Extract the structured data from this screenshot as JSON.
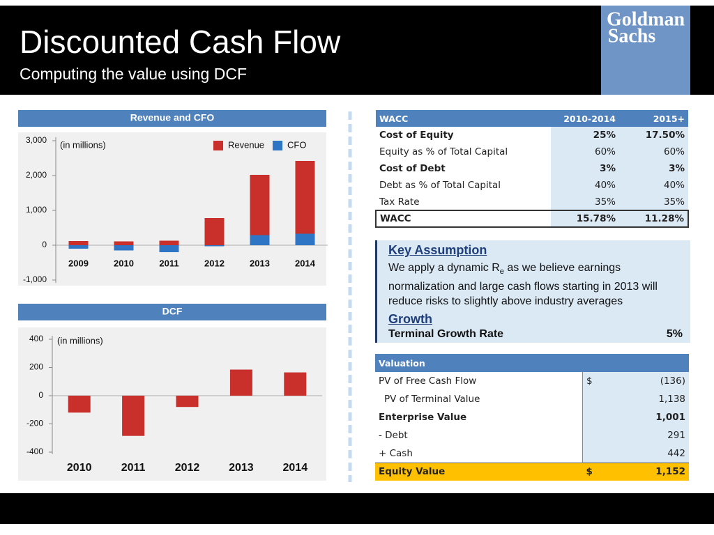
{
  "header": {
    "title": "Discounted Cash Flow",
    "subtitle": "Computing the value using DCF",
    "logo": [
      "Goldman",
      "Sachs"
    ]
  },
  "chart_data": [
    {
      "type": "bar",
      "title": "Revenue and CFO",
      "annotation": "(in millions)",
      "categories": [
        "2009",
        "2010",
        "2011",
        "2012",
        "2013",
        "2014"
      ],
      "series": [
        {
          "name": "Revenue",
          "color": "#c9302c",
          "values": [
            120,
            110,
            130,
            780,
            2020,
            2420
          ]
        },
        {
          "name": "CFO",
          "color": "#2e75c6",
          "values": [
            -100,
            -150,
            -200,
            -30,
            290,
            330
          ]
        }
      ],
      "ylim": [
        -1000,
        3000
      ],
      "yticks": [
        {
          "value": -1000,
          "label": "-1,000"
        },
        0,
        {
          "value": 1000,
          "label": "1,000"
        },
        {
          "value": 2000,
          "label": "2,000"
        },
        {
          "value": 3000,
          "label": "3,000"
        }
      ],
      "legend": "top-right"
    },
    {
      "type": "bar",
      "title": "DCF",
      "annotation": "(in millions)",
      "categories": [
        "2010",
        "2011",
        "2012",
        "2013",
        "2014"
      ],
      "values": [
        -120,
        -285,
        -80,
        185,
        165
      ],
      "color": "#c9302c",
      "ylim": [
        -400,
        400
      ],
      "yticks": [
        -400,
        -200,
        0,
        200,
        400
      ]
    }
  ],
  "wacc": {
    "header": [
      "WACC",
      "2010-2014",
      "2015+"
    ],
    "rows": [
      [
        "Cost of Equity",
        "25%",
        "17.50%"
      ],
      [
        "Equity as % of Total Capital",
        "60%",
        "60%"
      ],
      [
        "Cost of Debt",
        "3%",
        "3%"
      ],
      [
        "Debt as % of Total Capital",
        "40%",
        "40%"
      ],
      [
        "Tax Rate",
        "35%",
        "35%"
      ],
      [
        "WACC",
        "15.78%",
        "11.28%"
      ]
    ]
  },
  "key_assumption": {
    "heading": "Key Assumption",
    "text_before": "We apply a dynamic R",
    "subscript": "e",
    "text_after": " as we believe earnings normalization and large cash flows starting in 2013 will reduce risks to slightly above industry averages",
    "growth_heading": "Growth",
    "growth_label": "Terminal Growth Rate",
    "growth_value": "5%"
  },
  "valuation": {
    "header": "Valuation",
    "rows": [
      {
        "label": "PV of Free Cash Flow",
        "currency": "$",
        "value": "(136)"
      },
      {
        "label": "PV of Terminal Value",
        "value": "1,138"
      },
      {
        "label": "Enterprise Value",
        "value": "1,001"
      },
      {
        "label": "-  Debt",
        "value": "291"
      },
      {
        "label": "+ Cash",
        "value": "442"
      },
      {
        "label": "Equity Value",
        "currency": "$",
        "value": "1,152"
      }
    ]
  }
}
